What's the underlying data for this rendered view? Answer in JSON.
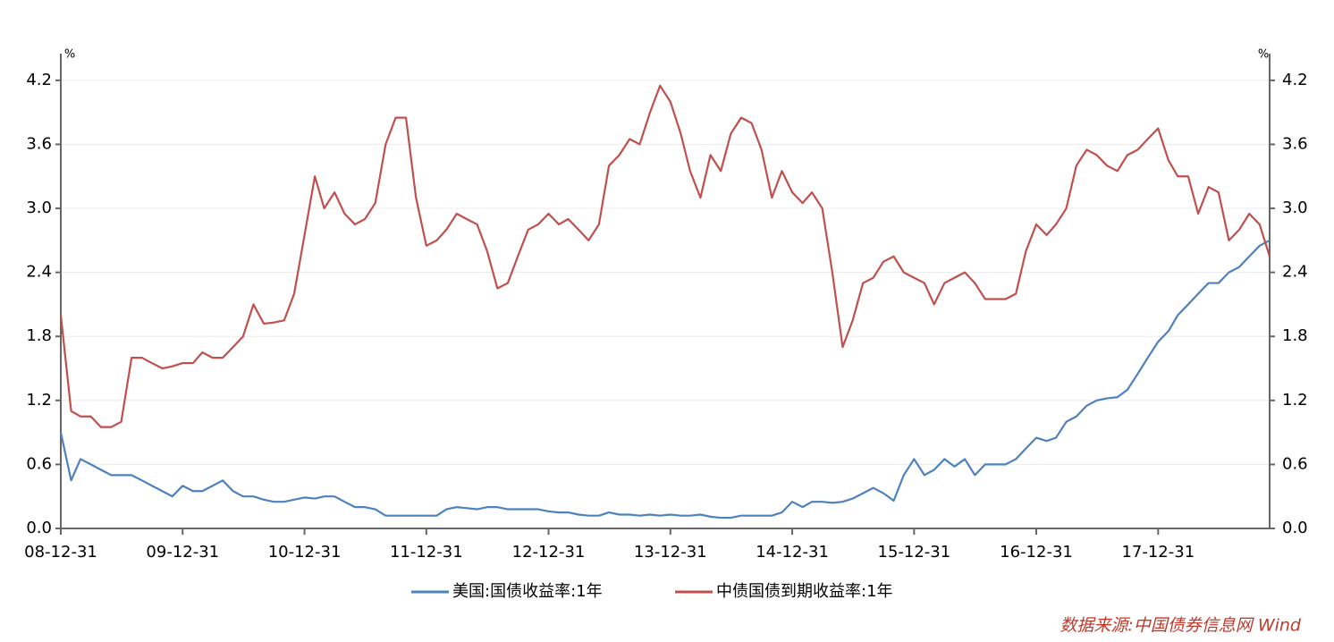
{
  "chart_data": {
    "type": "line",
    "y_label": "%",
    "y2_label": "%",
    "x": [
      "08-12-31",
      "09-01-31",
      "09-02-28",
      "09-03-31",
      "09-04-30",
      "09-05-31",
      "09-06-30",
      "09-07-31",
      "09-08-31",
      "09-09-30",
      "09-10-31",
      "09-11-30",
      "09-12-31",
      "10-01-31",
      "10-02-28",
      "10-03-31",
      "10-04-30",
      "10-05-31",
      "10-06-30",
      "10-07-31",
      "10-08-31",
      "10-09-30",
      "10-10-31",
      "10-11-30",
      "10-12-31",
      "11-01-31",
      "11-02-28",
      "11-03-31",
      "11-04-30",
      "11-05-31",
      "11-06-30",
      "11-07-31",
      "11-08-31",
      "11-09-30",
      "11-10-31",
      "11-11-30",
      "11-12-31",
      "12-01-31",
      "12-02-29",
      "12-03-31",
      "12-04-30",
      "12-05-31",
      "12-06-30",
      "12-07-31",
      "12-08-31",
      "12-09-30",
      "12-10-31",
      "12-11-30",
      "12-12-31",
      "13-01-31",
      "13-02-28",
      "13-03-31",
      "13-04-30",
      "13-05-31",
      "13-06-30",
      "13-07-31",
      "13-08-31",
      "13-09-30",
      "13-10-31",
      "13-11-30",
      "13-12-31",
      "14-01-31",
      "14-02-28",
      "14-03-31",
      "14-04-30",
      "14-05-31",
      "14-06-30",
      "14-07-31",
      "14-08-31",
      "14-09-30",
      "14-10-31",
      "14-11-30",
      "14-12-31",
      "15-01-31",
      "15-02-28",
      "15-03-31",
      "15-04-30",
      "15-05-31",
      "15-06-30",
      "15-07-31",
      "15-08-31",
      "15-09-30",
      "15-10-31",
      "15-11-30",
      "15-12-31",
      "16-01-31",
      "16-02-29",
      "16-03-31",
      "16-04-30",
      "16-05-31",
      "16-06-30",
      "16-07-31",
      "16-08-31",
      "16-09-30",
      "16-10-31",
      "16-11-30",
      "16-12-31",
      "17-01-31",
      "17-02-28",
      "17-03-31",
      "17-04-30",
      "17-05-31",
      "17-06-30",
      "17-07-31",
      "17-08-31",
      "17-09-30",
      "17-10-31",
      "17-11-30",
      "17-12-31",
      "18-01-31",
      "18-02-28",
      "18-03-31",
      "18-04-30",
      "18-05-31",
      "18-06-30",
      "18-07-31",
      "18-08-31",
      "18-09-30",
      "18-10-31",
      "18-11-30"
    ],
    "xlim": [
      "08-12-31",
      "18-11-30"
    ],
    "xticks": [
      "08-12-31",
      "09-12-31",
      "10-12-31",
      "11-12-31",
      "12-12-31",
      "13-12-31",
      "14-12-31",
      "15-12-31",
      "16-12-31",
      "17-12-31"
    ],
    "ylim": [
      0,
      4.4
    ],
    "yticks": [
      {
        "value": 0,
        "label": "0.0"
      },
      0.6,
      1.2,
      1.8,
      2.4,
      {
        "value": 3,
        "label": "3.0"
      },
      3.6,
      4.2
    ],
    "y2lim": [
      0,
      4.4
    ],
    "y2ticks": [
      {
        "value": 0,
        "label": "0.0"
      },
      0.6,
      1.2,
      1.8,
      2.4,
      {
        "value": 3,
        "label": "3.0"
      },
      3.6,
      4.2
    ],
    "grid": true,
    "legend": "bottom",
    "series": [
      {
        "name": "美国:国债收益率:1年",
        "color": "#4f81bd",
        "axis": "y",
        "values": [
          0.9,
          0.45,
          0.65,
          0.6,
          0.55,
          0.5,
          0.5,
          0.5,
          0.45,
          0.4,
          0.35,
          0.3,
          0.4,
          0.35,
          0.35,
          0.4,
          0.45,
          0.35,
          0.3,
          0.3,
          0.27,
          0.25,
          0.25,
          0.27,
          0.29,
          0.28,
          0.3,
          0.3,
          0.25,
          0.2,
          0.2,
          0.18,
          0.12,
          0.12,
          0.12,
          0.12,
          0.12,
          0.12,
          0.18,
          0.2,
          0.19,
          0.18,
          0.2,
          0.2,
          0.18,
          0.18,
          0.18,
          0.18,
          0.16,
          0.15,
          0.15,
          0.13,
          0.12,
          0.12,
          0.15,
          0.13,
          0.13,
          0.12,
          0.13,
          0.12,
          0.13,
          0.12,
          0.12,
          0.13,
          0.11,
          0.1,
          0.1,
          0.12,
          0.12,
          0.12,
          0.12,
          0.15,
          0.25,
          0.2,
          0.25,
          0.25,
          0.24,
          0.25,
          0.28,
          0.33,
          0.38,
          0.33,
          0.26,
          0.5,
          0.65,
          0.5,
          0.55,
          0.65,
          0.58,
          0.65,
          0.5,
          0.6,
          0.6,
          0.6,
          0.65,
          0.75,
          0.85,
          0.82,
          0.85,
          1.0,
          1.05,
          1.15,
          1.2,
          1.22,
          1.23,
          1.3,
          1.45,
          1.6,
          1.75,
          1.85,
          2.0,
          2.1,
          2.2,
          2.3,
          2.3,
          2.4,
          2.45,
          2.55,
          2.65,
          2.7
        ]
      },
      {
        "name": "中债国债到期收益率:1年",
        "color": "#c0504d",
        "axis": "y2",
        "values": [
          2.0,
          1.1,
          1.05,
          1.05,
          0.95,
          0.95,
          1.0,
          1.6,
          1.6,
          1.55,
          1.5,
          1.52,
          1.55,
          1.55,
          1.65,
          1.6,
          1.6,
          1.7,
          1.8,
          2.1,
          1.92,
          1.93,
          1.95,
          2.2,
          2.75,
          3.3,
          3.0,
          3.15,
          2.95,
          2.85,
          2.9,
          3.05,
          3.6,
          3.85,
          3.85,
          3.1,
          2.65,
          2.7,
          2.8,
          2.95,
          2.9,
          2.85,
          2.6,
          2.25,
          2.3,
          2.55,
          2.8,
          2.85,
          2.95,
          2.85,
          2.9,
          2.8,
          2.7,
          2.85,
          3.4,
          3.5,
          3.65,
          3.6,
          3.9,
          4.15,
          4.0,
          3.7,
          3.35,
          3.1,
          3.5,
          3.35,
          3.7,
          3.85,
          3.8,
          3.55,
          3.1,
          3.35,
          3.15,
          3.05,
          3.15,
          3.0,
          2.4,
          1.7,
          1.95,
          2.3,
          2.35,
          2.5,
          2.55,
          2.4,
          2.35,
          2.3,
          2.1,
          2.3,
          2.35,
          2.4,
          2.3,
          2.15,
          2.15,
          2.15,
          2.2,
          2.6,
          2.85,
          2.75,
          2.85,
          3.0,
          3.4,
          3.55,
          3.5,
          3.4,
          3.35,
          3.5,
          3.55,
          3.65,
          3.75,
          3.45,
          3.3,
          3.3,
          2.95,
          3.2,
          3.15,
          2.7,
          2.8,
          2.95,
          2.85,
          2.55
        ]
      }
    ],
    "source": "数据来源:中国债券信息网 Wind"
  }
}
